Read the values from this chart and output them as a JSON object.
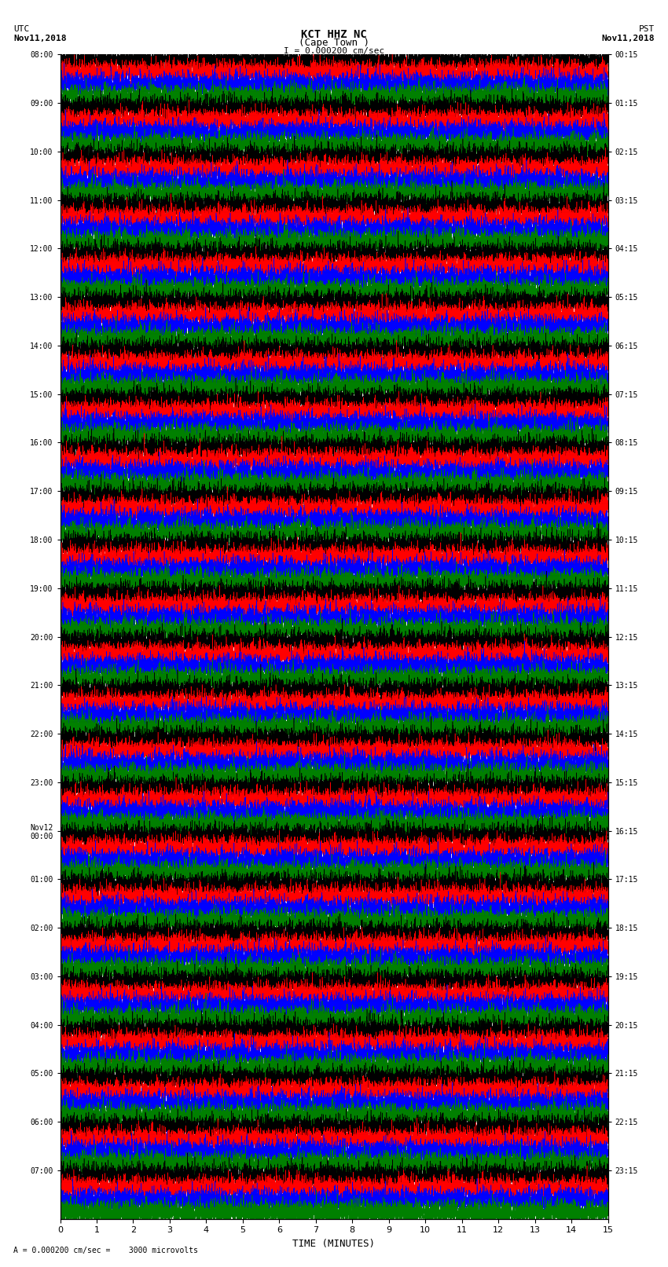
{
  "title_line1": "KCT HHZ NC",
  "title_line2": "(Cape Town )",
  "title_scale": "I = 0.000200 cm/sec",
  "left_header_line1": "UTC",
  "left_header_line2": "Nov11,2018",
  "right_header_line1": "PST",
  "right_header_line2": "Nov11,2018",
  "xlabel": "TIME (MINUTES)",
  "footnote": "= 0.000200 cm/sec =    3000 microvolts",
  "utc_labels": [
    "08:00",
    "09:00",
    "10:00",
    "11:00",
    "12:00",
    "13:00",
    "14:00",
    "15:00",
    "16:00",
    "17:00",
    "18:00",
    "19:00",
    "20:00",
    "21:00",
    "22:00",
    "23:00",
    "Nov12\n00:00",
    "01:00",
    "02:00",
    "03:00",
    "04:00",
    "05:00",
    "06:00",
    "07:00"
  ],
  "pst_labels": [
    "00:15",
    "01:15",
    "02:15",
    "03:15",
    "04:15",
    "05:15",
    "06:15",
    "07:15",
    "08:15",
    "09:15",
    "10:15",
    "11:15",
    "12:15",
    "13:15",
    "14:15",
    "15:15",
    "16:15",
    "17:15",
    "18:15",
    "19:15",
    "20:15",
    "21:15",
    "22:15",
    "23:15"
  ],
  "xticks": [
    0,
    1,
    2,
    3,
    4,
    5,
    6,
    7,
    8,
    9,
    10,
    11,
    12,
    13,
    14,
    15
  ],
  "colors": [
    "black",
    "red",
    "blue",
    "green"
  ],
  "n_rows": 24,
  "traces_per_row": 4,
  "fig_width": 8.5,
  "fig_height": 16.13,
  "bg_color": "white",
  "plot_bg": "white",
  "t_points": 8000,
  "linewidth": 0.4
}
